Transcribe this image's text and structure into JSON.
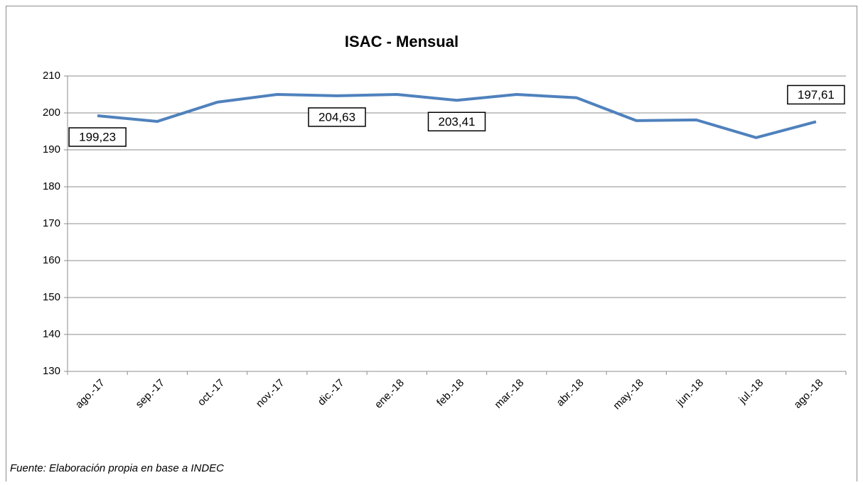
{
  "chart_data": {
    "type": "line",
    "title": "ISAC - Mensual",
    "categories": [
      "ago.-17",
      "sep.-17",
      "oct.-17",
      "nov.-17",
      "dic.-17",
      "ene.-18",
      "feb.-18",
      "mar.-18",
      "abr.-18",
      "may.-18",
      "jun.-18",
      "jul.-18",
      "ago.-18"
    ],
    "series": [
      {
        "name": "ISAC",
        "color": "#4f81bd",
        "values": [
          199.23,
          197.7,
          202.9,
          205.0,
          204.63,
          205.0,
          203.41,
          205.0,
          204.1,
          197.9,
          198.1,
          193.3,
          197.61
        ],
        "value_labels": [
          "199,23",
          null,
          null,
          null,
          "204,63",
          null,
          "203,41",
          null,
          null,
          null,
          null,
          null,
          "197,61"
        ]
      }
    ],
    "ylim": [
      130,
      210
    ],
    "yticks": [
      130,
      140,
      150,
      160,
      170,
      180,
      190,
      200,
      210
    ],
    "grid": true,
    "source": "Fuente: Elaboración propia en base a INDEC"
  }
}
